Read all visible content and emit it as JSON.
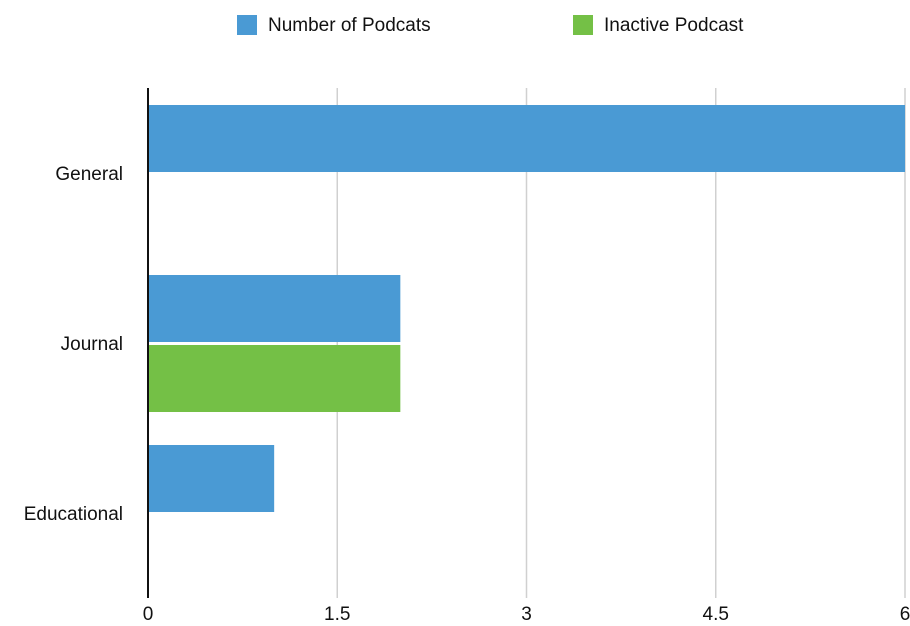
{
  "chart_data": {
    "type": "hbar",
    "categories": [
      "General",
      "Journal",
      "Educational"
    ],
    "series": [
      {
        "name": "Number of Podcats",
        "color": "#4a9ad4",
        "values": [
          6,
          2,
          1
        ]
      },
      {
        "name": "Inactive Podcast",
        "color": "#74c046",
        "values": [
          0,
          2,
          0
        ]
      }
    ],
    "xlim": [
      0,
      6
    ],
    "xticks": [
      0,
      1.5,
      3,
      4.5,
      6
    ],
    "grid": true,
    "legend": "top"
  }
}
